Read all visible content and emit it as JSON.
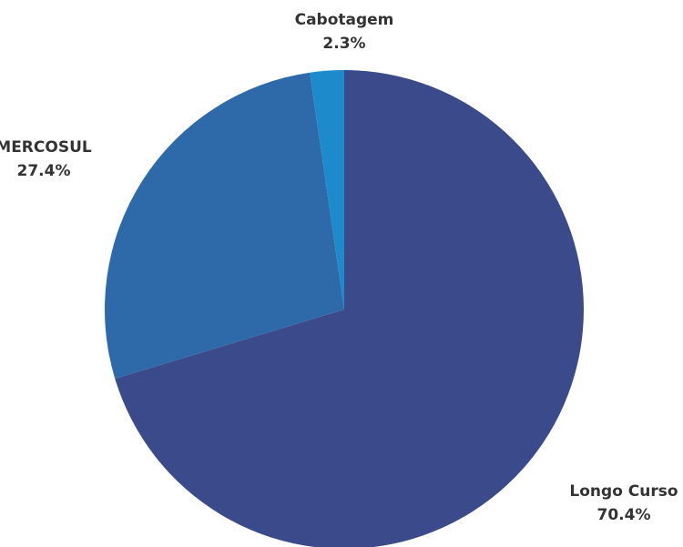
{
  "chart_data": {
    "type": "pie",
    "categories": [
      "Longo Curso",
      "MERCOSUL",
      "Cabotagem"
    ],
    "values": [
      70.4,
      27.4,
      2.3
    ],
    "value_labels": [
      "70.4%",
      "27.4%",
      "2.3%"
    ],
    "colors": [
      "#3a4a8b",
      "#2e69aa",
      "#1d8bcb"
    ]
  }
}
